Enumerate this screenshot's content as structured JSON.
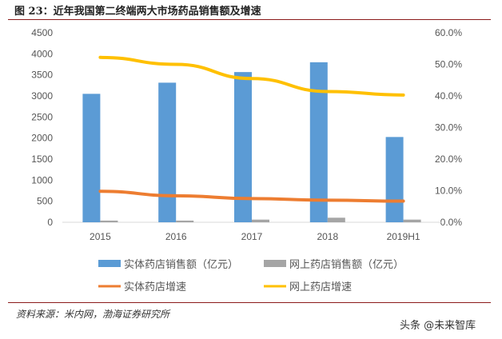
{
  "title": "图 23：近年我国第二终端两大市场药品销售额及增速",
  "source": "资料来源：米内网，渤海证券研究所",
  "watermark": "头条 @未来智库",
  "chart_data": {
    "type": "bar",
    "categories": [
      "2015",
      "2016",
      "2017",
      "2018",
      "2019H1"
    ],
    "y_left": {
      "range": [
        0,
        4500
      ],
      "ticks": [
        "0",
        "500",
        "1000",
        "1500",
        "2000",
        "2500",
        "3000",
        "3500",
        "4000",
        "4500"
      ]
    },
    "y_right": {
      "range": [
        0,
        60
      ],
      "ticks": [
        "0.0%",
        "10.0%",
        "20.0%",
        "30.0%",
        "40.0%",
        "50.0%",
        "60.0%"
      ]
    },
    "grid": false,
    "legend_placement": "bottom",
    "series": [
      {
        "name": "实体药店销售额（亿元）",
        "type": "bar",
        "axis": "left",
        "color": "#5b9bd5",
        "values": [
          3050,
          3315,
          3567,
          3800,
          2025
        ]
      },
      {
        "name": "网上药店销售额（亿元）",
        "type": "bar",
        "axis": "left",
        "color": "#a5a5a5",
        "values": [
          40,
          40,
          63,
          108,
          63
        ]
      },
      {
        "name": "实体药店增速",
        "type": "line",
        "axis": "right",
        "color": "#ed7d31",
        "values": [
          9.8,
          8.4,
          7.5,
          7.0,
          6.7
        ]
      },
      {
        "name": "网上药店增速",
        "type": "line",
        "axis": "right",
        "color": "#ffc000",
        "values": [
          52.2,
          50.0,
          45.5,
          41.4,
          40.3
        ]
      }
    ]
  }
}
